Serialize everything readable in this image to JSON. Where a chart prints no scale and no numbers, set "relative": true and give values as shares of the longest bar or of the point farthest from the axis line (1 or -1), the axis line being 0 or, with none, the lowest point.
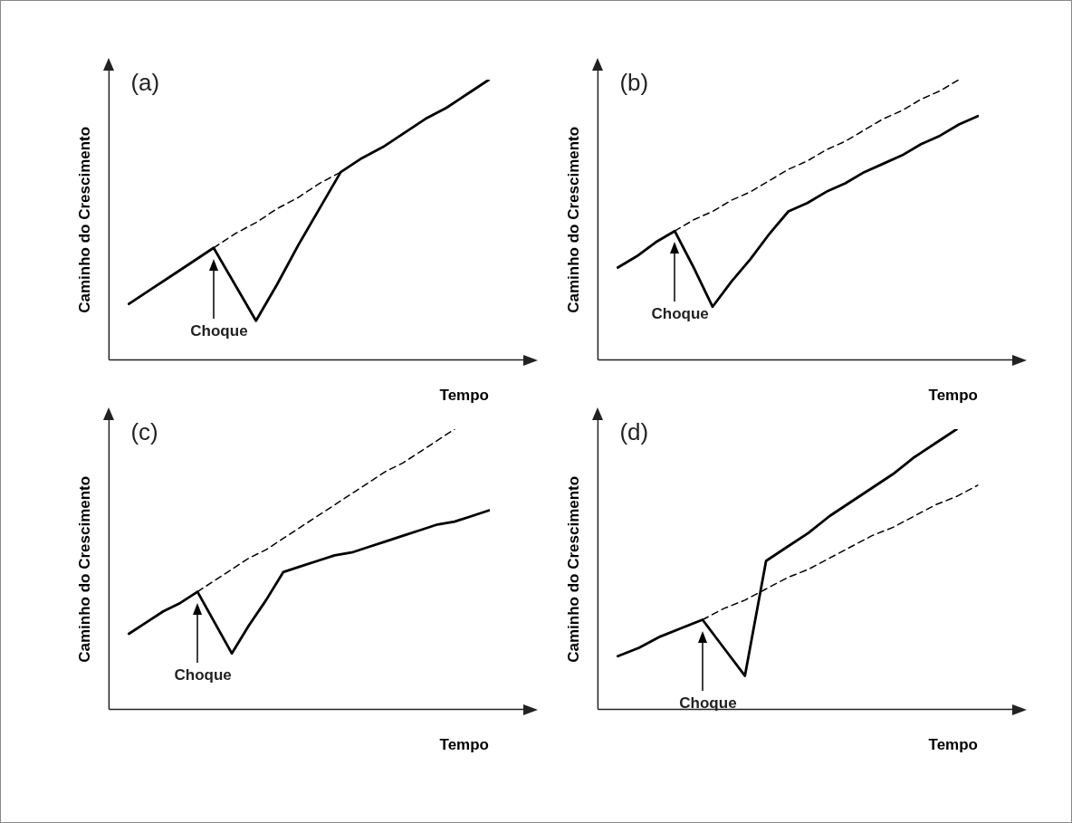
{
  "chart_data": [
    {
      "type": "line",
      "title": "(a)",
      "xlabel": "Tempo",
      "ylabel": "Caminho do Crescimento",
      "relative": true,
      "tick_labels": false,
      "legend": false,
      "grid": false,
      "marker": "none",
      "annotations": [
        "Choque"
      ],
      "categories": [
        null,
        null,
        null,
        null,
        null,
        null,
        null,
        null,
        null,
        null,
        null,
        null,
        null,
        null,
        null,
        null,
        null,
        null
      ],
      "series": [
        {
          "color": "#000000",
          "line_style": "solid",
          "values": [
            0.2,
            0.25,
            0.3,
            0.35,
            0.4,
            0.27,
            0.14,
            0.27,
            0.41,
            0.54,
            0.67,
            0.72,
            0.76,
            0.81,
            0.86,
            0.9,
            0.95,
            1
          ]
        },
        {
          "color": "#000000",
          "line_style": "dashed",
          "values": [
            null,
            null,
            null,
            null,
            0.4,
            0.45,
            0.49,
            0.54,
            0.58,
            0.63,
            0.67,
            null,
            null,
            null,
            null,
            null,
            null,
            null
          ]
        }
      ]
    },
    {
      "type": "line",
      "title": "(b)",
      "xlabel": "Tempo",
      "ylabel": "Caminho do Crescimento",
      "relative": true,
      "tick_labels": false,
      "legend": false,
      "grid": false,
      "marker": "none",
      "annotations": [
        "Choque"
      ],
      "categories": [
        null,
        null,
        null,
        null,
        null,
        null,
        null,
        null,
        null,
        null,
        null,
        null,
        null,
        null,
        null,
        null,
        null,
        null,
        null,
        null
      ],
      "series": [
        {
          "color": "#000000",
          "line_style": "solid",
          "values": [
            0.33,
            0.37,
            0.42,
            0.46,
            0.33,
            0.19,
            0.28,
            0.36,
            0.45,
            0.53,
            0.56,
            0.6,
            0.63,
            0.67,
            0.7,
            0.73,
            0.77,
            0.8,
            0.84,
            0.87
          ]
        },
        {
          "color": "#000000",
          "line_style": "dashed",
          "values": [
            null,
            null,
            null,
            0.46,
            0.5,
            0.53,
            0.57,
            0.6,
            0.64,
            0.68,
            0.71,
            0.75,
            0.78,
            0.82,
            0.86,
            0.89,
            0.93,
            0.96,
            1,
            null
          ]
        }
      ]
    },
    {
      "type": "line",
      "title": "(c)",
      "xlabel": "Tempo",
      "ylabel": "Caminho do Crescimento",
      "relative": true,
      "tick_labels": false,
      "legend": false,
      "grid": false,
      "marker": "none",
      "annotations": [
        "Choque"
      ],
      "categories": [
        null,
        null,
        null,
        null,
        null,
        null,
        null,
        null,
        null,
        null,
        null,
        null,
        null,
        null,
        null,
        null,
        null,
        null,
        null,
        null,
        null,
        null
      ],
      "series": [
        {
          "color": "#000000",
          "line_style": "solid",
          "values": [
            0.27,
            0.31,
            0.35,
            0.38,
            0.42,
            0.31,
            0.2,
            0.3,
            0.39,
            0.49,
            0.51,
            0.53,
            0.55,
            0.56,
            0.58,
            0.6,
            0.62,
            0.64,
            0.66,
            0.67,
            0.69,
            0.71
          ]
        },
        {
          "color": "#000000",
          "line_style": "dashed",
          "values": [
            null,
            null,
            null,
            null,
            0.42,
            0.46,
            0.5,
            0.54,
            0.57,
            0.61,
            0.65,
            0.69,
            0.73,
            0.77,
            0.81,
            0.85,
            0.88,
            0.92,
            0.96,
            1,
            null,
            null
          ]
        }
      ]
    },
    {
      "type": "line",
      "title": "(d)",
      "xlabel": "Tempo",
      "ylabel": "Caminho do Crescimento",
      "relative": true,
      "tick_labels": false,
      "legend": false,
      "grid": false,
      "marker": "none",
      "annotations": [
        "Choque"
      ],
      "categories": [
        null,
        null,
        null,
        null,
        null,
        null,
        null,
        null,
        null,
        null,
        null,
        null,
        null,
        null,
        null,
        null,
        null,
        null
      ],
      "series": [
        {
          "color": "#000000",
          "line_style": "solid",
          "values": [
            0.19,
            0.22,
            0.26,
            0.29,
            0.32,
            0.22,
            0.12,
            0.53,
            0.58,
            0.63,
            0.69,
            0.74,
            0.79,
            0.84,
            0.9,
            0.95,
            1,
            null
          ]
        },
        {
          "color": "#000000",
          "line_style": "dashed",
          "values": [
            null,
            null,
            null,
            null,
            0.32,
            0.36,
            0.39,
            0.43,
            0.47,
            0.5,
            0.54,
            0.58,
            0.62,
            0.65,
            0.69,
            0.73,
            0.76,
            0.8
          ]
        }
      ]
    }
  ]
}
